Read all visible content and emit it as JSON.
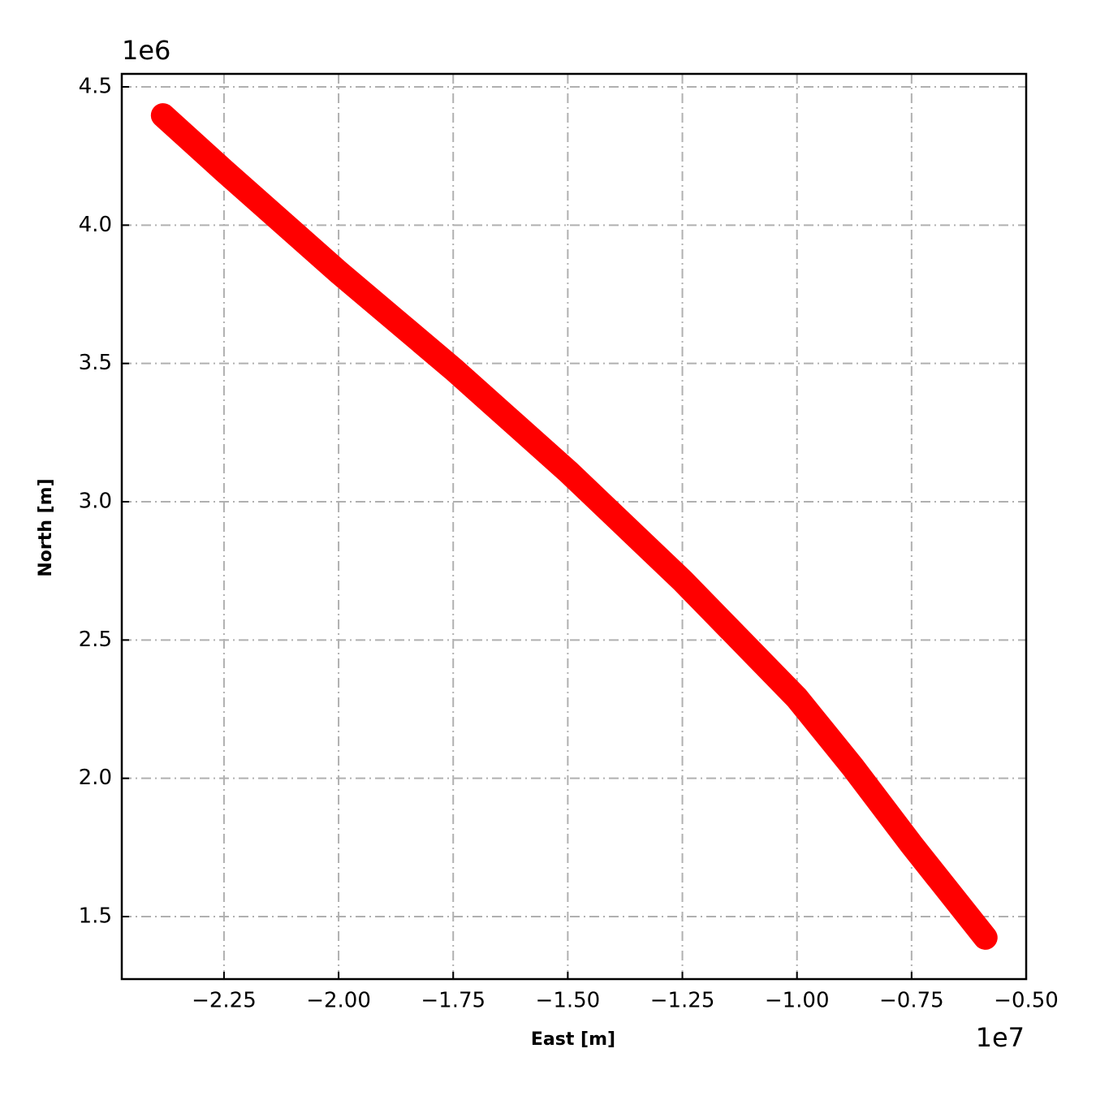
{
  "chart_data": {
    "type": "line",
    "x_label": "East [m]",
    "y_label": "North [m]",
    "x_offset": "1e7",
    "y_offset": "1e6",
    "xlim": [
      -2.473,
      -0.5
    ],
    "ylim": [
      1.274,
      4.547
    ],
    "xticks": [
      {
        "value": -2.25,
        "label": "−2.25"
      },
      {
        "value": -2.0,
        "label": "−2.00"
      },
      {
        "value": -1.75,
        "label": "−1.75"
      },
      {
        "value": -1.5,
        "label": "−1.50"
      },
      {
        "value": -1.25,
        "label": "−1.25"
      },
      {
        "value": -1.0,
        "label": "−1.00"
      },
      {
        "value": -0.75,
        "label": "−0.75"
      },
      {
        "value": -0.5,
        "label": "−0.50"
      }
    ],
    "yticks": [
      1.5,
      {
        "value": 2.0,
        "label": "2.0"
      },
      2.5,
      {
        "value": 3.0,
        "label": "3.0"
      },
      3.5,
      {
        "value": 4.0,
        "label": "4.0"
      },
      4.5
    ],
    "grid": true,
    "color": "#ff0000",
    "x": [
      -2.383,
      -2.25,
      -2.0,
      -1.75,
      -1.5,
      -1.25,
      -1.0,
      -0.878,
      -0.75,
      -0.589
    ],
    "values": [
      4.397,
      4.197,
      3.83,
      3.48,
      3.11,
      2.715,
      2.29,
      2.04,
      1.76,
      1.424
    ]
  }
}
